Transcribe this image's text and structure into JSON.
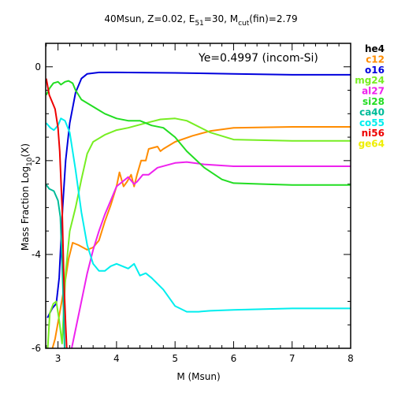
{
  "chart_data": {
    "type": "line",
    "title": "40Msun, Z=0.02, E51=30, Mcut(fin)=2.79",
    "title_parts": {
      "main": "40Msun, Z=0.02, E",
      "e_sub": "51",
      "mid": "=30, M",
      "m_sub": "cut",
      "end": "(fin)=2.79"
    },
    "annotation": "Ye=0.4997 (incom-Si)",
    "xlabel": "M (Msun)",
    "ylabel_parts": {
      "main": "Mass Fraction Log",
      "sub": "10",
      "end": "(X)"
    },
    "xlim": [
      2.79,
      8
    ],
    "ylim": [
      -6,
      0.5
    ],
    "x_ticks": [
      3,
      4,
      5,
      6,
      7,
      8
    ],
    "y_ticks": [
      0,
      -2,
      -4,
      -6
    ],
    "grid": false,
    "legend_placement": "right",
    "series": [
      {
        "name": "he4",
        "color": "#000000",
        "points": []
      },
      {
        "name": "c12",
        "color": "#ff8c00",
        "points": [
          [
            2.86,
            -6.2
          ],
          [
            2.95,
            -5.8
          ],
          [
            3.05,
            -5.1
          ],
          [
            3.12,
            -4.6
          ],
          [
            3.18,
            -4.1
          ],
          [
            3.25,
            -3.75
          ],
          [
            3.35,
            -3.8
          ],
          [
            3.5,
            -3.9
          ],
          [
            3.6,
            -3.85
          ],
          [
            3.7,
            -3.7
          ],
          [
            3.8,
            -3.3
          ],
          [
            3.9,
            -2.95
          ],
          [
            4.0,
            -2.55
          ],
          [
            4.05,
            -2.25
          ],
          [
            4.12,
            -2.55
          ],
          [
            4.18,
            -2.45
          ],
          [
            4.25,
            -2.3
          ],
          [
            4.3,
            -2.55
          ],
          [
            4.35,
            -2.3
          ],
          [
            4.42,
            -2.0
          ],
          [
            4.5,
            -2.0
          ],
          [
            4.55,
            -1.75
          ],
          [
            4.7,
            -1.7
          ],
          [
            4.75,
            -1.8
          ],
          [
            4.8,
            -1.75
          ],
          [
            5.0,
            -1.6
          ],
          [
            5.3,
            -1.47
          ],
          [
            5.6,
            -1.37
          ],
          [
            6.0,
            -1.3
          ],
          [
            7.0,
            -1.28
          ],
          [
            8.0,
            -1.28
          ]
        ]
      },
      {
        "name": "o16",
        "color": "#0000dd",
        "points": [
          [
            2.82,
            -5.35
          ],
          [
            2.9,
            -5.15
          ],
          [
            2.97,
            -5.05
          ],
          [
            3.02,
            -4.5
          ],
          [
            3.08,
            -3.0
          ],
          [
            3.13,
            -2.0
          ],
          [
            3.2,
            -1.2
          ],
          [
            3.3,
            -0.55
          ],
          [
            3.4,
            -0.25
          ],
          [
            3.5,
            -0.15
          ],
          [
            3.7,
            -0.12
          ],
          [
            4.0,
            -0.12
          ],
          [
            5.0,
            -0.13
          ],
          [
            6.0,
            -0.15
          ],
          [
            7.0,
            -0.17
          ],
          [
            8.0,
            -0.17
          ]
        ]
      },
      {
        "name": "mg24",
        "color": "#77ee22",
        "points": [
          [
            2.82,
            -6.1
          ],
          [
            2.86,
            -5.25
          ],
          [
            2.92,
            -5.05
          ],
          [
            2.97,
            -5.0
          ],
          [
            3.02,
            -5.4
          ],
          [
            3.07,
            -5.9
          ],
          [
            3.13,
            -4.4
          ],
          [
            3.2,
            -3.5
          ],
          [
            3.3,
            -3.0
          ],
          [
            3.4,
            -2.4
          ],
          [
            3.5,
            -1.85
          ],
          [
            3.6,
            -1.6
          ],
          [
            3.8,
            -1.45
          ],
          [
            4.0,
            -1.35
          ],
          [
            4.2,
            -1.3
          ],
          [
            4.5,
            -1.2
          ],
          [
            4.75,
            -1.12
          ],
          [
            5.0,
            -1.1
          ],
          [
            5.2,
            -1.15
          ],
          [
            5.6,
            -1.4
          ],
          [
            6.0,
            -1.55
          ],
          [
            7.0,
            -1.58
          ],
          [
            8.0,
            -1.58
          ]
        ]
      },
      {
        "name": "al27",
        "color": "#ee22ee",
        "points": [
          [
            3.2,
            -6.2
          ],
          [
            3.3,
            -5.6
          ],
          [
            3.4,
            -5.0
          ],
          [
            3.5,
            -4.4
          ],
          [
            3.6,
            -3.9
          ],
          [
            3.7,
            -3.5
          ],
          [
            3.8,
            -3.15
          ],
          [
            3.9,
            -2.85
          ],
          [
            4.0,
            -2.55
          ],
          [
            4.1,
            -2.45
          ],
          [
            4.2,
            -2.35
          ],
          [
            4.3,
            -2.5
          ],
          [
            4.35,
            -2.45
          ],
          [
            4.45,
            -2.3
          ],
          [
            4.55,
            -2.3
          ],
          [
            4.7,
            -2.15
          ],
          [
            5.0,
            -2.05
          ],
          [
            5.2,
            -2.03
          ],
          [
            5.5,
            -2.08
          ],
          [
            6.0,
            -2.12
          ],
          [
            7.0,
            -2.12
          ],
          [
            8.0,
            -2.12
          ]
        ]
      },
      {
        "name": "si28",
        "color": "#22dd22",
        "points": [
          [
            2.8,
            -0.6
          ],
          [
            2.86,
            -0.45
          ],
          [
            2.92,
            -0.35
          ],
          [
            3.0,
            -0.32
          ],
          [
            3.05,
            -0.38
          ],
          [
            3.12,
            -0.32
          ],
          [
            3.18,
            -0.3
          ],
          [
            3.25,
            -0.35
          ],
          [
            3.3,
            -0.5
          ],
          [
            3.4,
            -0.7
          ],
          [
            3.6,
            -0.85
          ],
          [
            3.8,
            -1.0
          ],
          [
            4.0,
            -1.1
          ],
          [
            4.2,
            -1.15
          ],
          [
            4.4,
            -1.15
          ],
          [
            4.6,
            -1.25
          ],
          [
            4.8,
            -1.3
          ],
          [
            5.0,
            -1.5
          ],
          [
            5.2,
            -1.8
          ],
          [
            5.5,
            -2.15
          ],
          [
            5.8,
            -2.4
          ],
          [
            6.0,
            -2.48
          ],
          [
            6.5,
            -2.5
          ],
          [
            7.0,
            -2.52
          ],
          [
            8.0,
            -2.52
          ]
        ]
      },
      {
        "name": "ca40",
        "color": "#00bb99",
        "points": [
          [
            2.79,
            -2.5
          ],
          [
            2.85,
            -2.6
          ],
          [
            2.93,
            -2.65
          ],
          [
            3.0,
            -2.85
          ],
          [
            3.04,
            -3.2
          ],
          [
            3.08,
            -4.5
          ],
          [
            3.12,
            -6.3
          ]
        ]
      },
      {
        "name": "co55",
        "color": "#00eeee",
        "points": [
          [
            2.8,
            -1.2
          ],
          [
            2.87,
            -1.3
          ],
          [
            2.93,
            -1.35
          ],
          [
            3.0,
            -1.25
          ],
          [
            3.05,
            -1.1
          ],
          [
            3.12,
            -1.15
          ],
          [
            3.2,
            -1.4
          ],
          [
            3.3,
            -2.2
          ],
          [
            3.4,
            -3.1
          ],
          [
            3.5,
            -3.8
          ],
          [
            3.6,
            -4.2
          ],
          [
            3.7,
            -4.35
          ],
          [
            3.8,
            -4.35
          ],
          [
            3.9,
            -4.25
          ],
          [
            4.0,
            -4.2
          ],
          [
            4.1,
            -4.25
          ],
          [
            4.2,
            -4.3
          ],
          [
            4.3,
            -4.2
          ],
          [
            4.4,
            -4.45
          ],
          [
            4.5,
            -4.4
          ],
          [
            4.6,
            -4.5
          ],
          [
            4.8,
            -4.75
          ],
          [
            5.0,
            -5.1
          ],
          [
            5.2,
            -5.22
          ],
          [
            5.4,
            -5.22
          ],
          [
            5.6,
            -5.2
          ],
          [
            6.0,
            -5.18
          ],
          [
            7.0,
            -5.15
          ],
          [
            8.0,
            -5.15
          ]
        ]
      },
      {
        "name": "ni56",
        "color": "#ee0000",
        "points": [
          [
            2.8,
            -0.25
          ],
          [
            2.85,
            -0.6
          ],
          [
            2.9,
            -0.75
          ],
          [
            2.95,
            -0.9
          ],
          [
            3.0,
            -1.3
          ],
          [
            3.03,
            -1.8
          ],
          [
            3.07,
            -3.0
          ],
          [
            3.1,
            -4.5
          ],
          [
            3.13,
            -5.5
          ],
          [
            3.16,
            -6.3
          ]
        ]
      },
      {
        "name": "ge64",
        "color": "#eeee00",
        "points": []
      }
    ]
  }
}
